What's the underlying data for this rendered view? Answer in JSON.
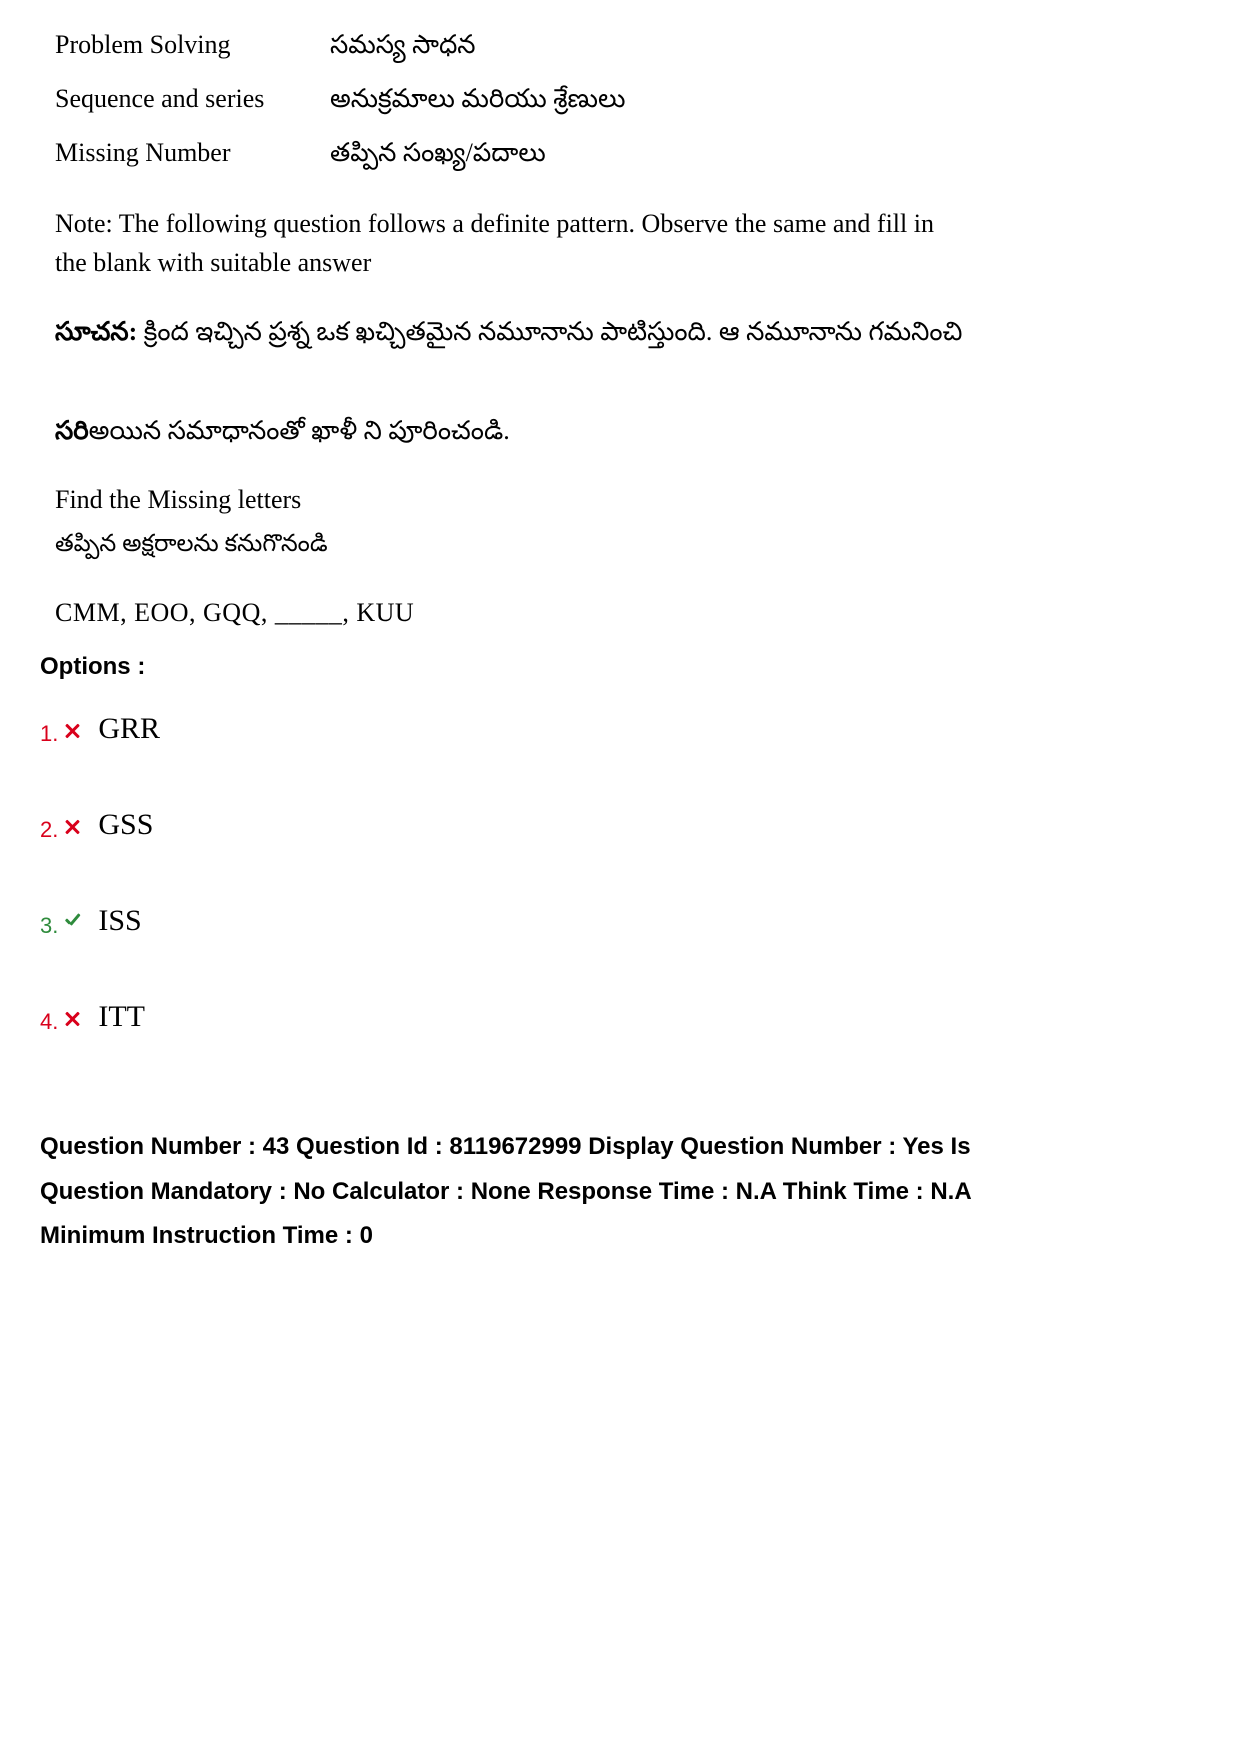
{
  "topics": [
    {
      "en": "Problem Solving",
      "te": "సమస్య సాధన"
    },
    {
      "en": "Sequence and series",
      "te": "అనుక్రమాలు మరియు శ్రేణులు"
    },
    {
      "en": "Missing Number",
      "te": "తప్పిన సంఖ్య/పదాలు"
    }
  ],
  "note_en": "Note:  The following question follows a definite pattern. Observe the same and fill in the blank with suitable answer",
  "note_te_bold": "సూచన: ",
  "note_te_1": "క్రింద  ఇచ్చిన ప్రశ్న  ఒక ఖచ్చితమైన నమూనాను పాటిస్తుంది. ఆ నమూనాను గమనించి",
  "note_te_2a": "సరి",
  "note_te_2b": "అయిన సమాధానంతో ఖాళీ ని పూరించండి.",
  "find_en": "Find the Missing letters",
  "find_te": "తప్పిన అక్షరాలను   కనుగొనండి",
  "sequence": "CMM, EOO, GQQ, _____, KUU",
  "options_label": "Options :",
  "options": [
    {
      "num": "1.",
      "text": "GRR",
      "state": "wrong"
    },
    {
      "num": "2.",
      "text": "GSS",
      "state": "wrong"
    },
    {
      "num": "3.",
      "text": "ISS",
      "state": "correct"
    },
    {
      "num": "4.",
      "text": "ITT",
      "state": "wrong"
    }
  ],
  "meta": "Question Number : 43 Question Id : 8119672999 Display Question Number : Yes Is Question Mandatory : No Calculator : None Response Time : N.A Think Time : N.A Minimum Instruction Time : 0",
  "colors": {
    "wrong": "#d9001b",
    "correct": "#2e8b3c"
  }
}
